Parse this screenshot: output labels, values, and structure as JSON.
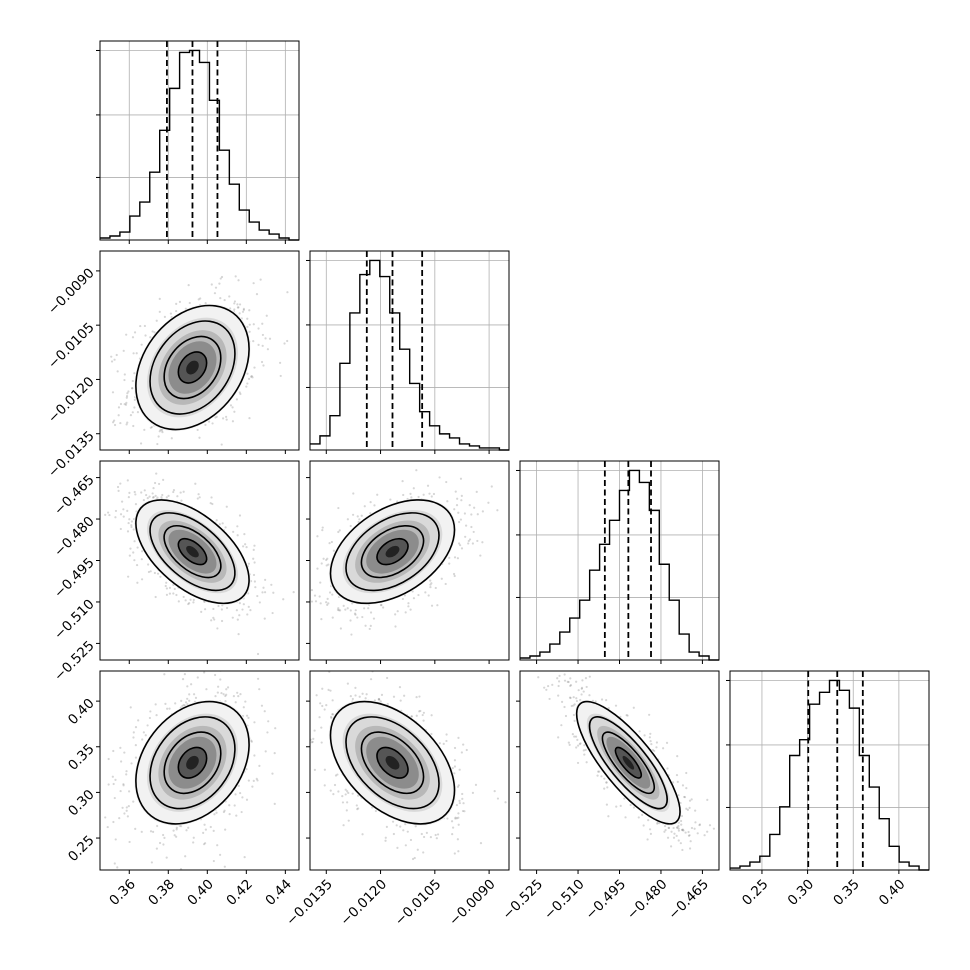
{
  "chart_data": {
    "type": "corner",
    "parameters": [
      {
        "name": "",
        "ticks": [
          0.36,
          0.38,
          0.4,
          0.42,
          0.44
        ],
        "tick_labels": [
          "0.36",
          "0.38",
          "0.40",
          "0.42",
          "0.44"
        ],
        "range": [
          0.345,
          0.447
        ],
        "quantiles": [
          0.3793,
          0.3924,
          0.4052
        ],
        "hist_edges": [
          0.345,
          0.3501,
          0.3552,
          0.3603,
          0.3654,
          0.3705,
          0.3756,
          0.3807,
          0.3858,
          0.3909,
          0.396,
          0.4011,
          0.4062,
          0.4113,
          0.4164,
          0.4215,
          0.4266,
          0.4317,
          0.4368,
          0.4419,
          0.447
        ],
        "hist_counts": [
          1,
          2,
          4,
          12,
          19,
          34,
          55,
          76,
          94,
          95,
          89,
          70,
          45,
          28,
          15,
          9,
          5,
          3,
          1,
          0
        ]
      },
      {
        "name": "",
        "ticks": [
          -0.0135,
          -0.012,
          -0.0105,
          -0.009
        ],
        "tick_labels": [
          "−0.0135",
          "−0.0120",
          "−0.0105",
          "−0.0090"
        ],
        "range": [
          -0.01395,
          -0.00845
        ],
        "quantiles": [
          -0.01238,
          -0.01167,
          -0.01085
        ],
        "hist_edges": [
          -0.01395,
          -0.0136745,
          -0.013399,
          -0.0131235,
          -0.012848,
          -0.0125725,
          -0.012297,
          -0.0120215,
          -0.011746,
          -0.0114705,
          -0.011195,
          -0.0109195,
          -0.010644,
          -0.0103685,
          -0.010093,
          -0.0098175,
          -0.009542,
          -0.0092665,
          -0.008991,
          -0.0087155,
          -0.00844
        ],
        "hist_counts": [
          3,
          7,
          17,
          43,
          68,
          87,
          94,
          86,
          68,
          50,
          33,
          19,
          12,
          8,
          6,
          3,
          2,
          1,
          1,
          0
        ]
      },
      {
        "name": "",
        "ticks": [
          -0.525,
          -0.51,
          -0.495,
          -0.48,
          -0.465
        ],
        "tick_labels": [
          "−0.525",
          "−0.510",
          "−0.495",
          "−0.480",
          "−0.465"
        ],
        "range": [
          -0.531,
          -0.459
        ],
        "quantiles": [
          -0.5003,
          -0.4918,
          -0.4836
        ],
        "hist_edges": [
          -0.531,
          -0.5274,
          -0.5238,
          -0.5202,
          -0.5166,
          -0.513,
          -0.5094,
          -0.5058,
          -0.5022,
          -0.4986,
          -0.495,
          -0.4914,
          -0.4878,
          -0.4842,
          -0.4806,
          -0.477,
          -0.4734,
          -0.4698,
          -0.4662,
          -0.4626,
          -0.459
        ],
        "hist_counts": [
          1,
          2,
          4,
          8,
          14,
          21,
          30,
          45,
          58,
          70,
          85,
          95,
          89,
          75,
          48,
          30,
          13,
          4,
          2,
          0
        ]
      },
      {
        "name": "",
        "ticks": [
          0.25,
          0.3,
          0.35,
          0.4
        ],
        "tick_labels": [
          "0.25",
          "0.30",
          "0.35",
          "0.40"
        ],
        "range": [
          0.215,
          0.433
        ],
        "quantiles": [
          0.3007,
          0.3325,
          0.3605
        ],
        "hist_edges": [
          0.215,
          0.2259,
          0.2368,
          0.2477,
          0.2586,
          0.2695,
          0.2804,
          0.2913,
          0.3022,
          0.3131,
          0.324,
          0.3349,
          0.3458,
          0.3567,
          0.3676,
          0.3785,
          0.3894,
          0.4003,
          0.4112,
          0.4221,
          0.433
        ],
        "hist_counts": [
          1,
          2,
          4,
          7,
          18,
          32,
          58,
          66,
          84,
          90,
          96,
          91,
          82,
          58,
          42,
          26,
          12,
          4,
          2,
          0
        ]
      }
    ],
    "correlations": [
      {
        "x": 0,
        "y": 1,
        "rho": 0.3
      },
      {
        "x": 0,
        "y": 2,
        "rho": -0.55
      },
      {
        "x": 1,
        "y": 2,
        "rho": 0.42
      },
      {
        "x": 0,
        "y": 3,
        "rho": 0.3
      },
      {
        "x": 1,
        "y": 3,
        "rho": -0.45
      },
      {
        "x": 2,
        "y": 3,
        "rho": -0.8
      }
    ],
    "contour_levels_sigma": [
      0.5,
      1.0,
      1.5,
      2.0
    ],
    "grid": true,
    "colors": {
      "points": "#8a8a8a",
      "lines": "#000000"
    }
  }
}
